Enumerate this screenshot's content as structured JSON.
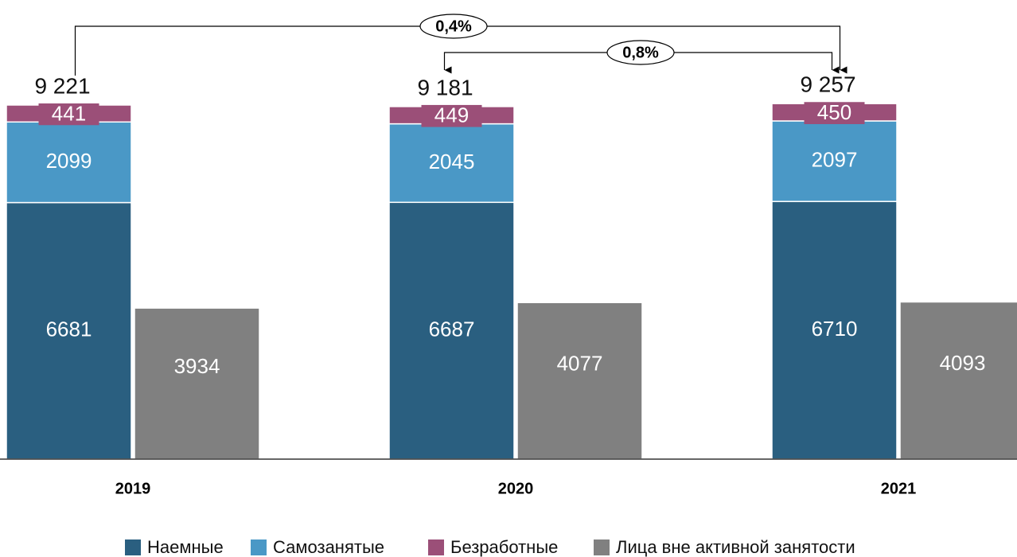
{
  "chart_data": {
    "type": "bar",
    "categories": [
      "2019",
      "2020",
      "2021"
    ],
    "series": [
      {
        "name": "Наемные",
        "color": "#2a5f80",
        "stack": "a",
        "values": [
          6681,
          6687,
          6710
        ]
      },
      {
        "name": "Самозанятые",
        "color": "#4a98c6",
        "stack": "a",
        "values": [
          2099,
          2045,
          2097
        ]
      },
      {
        "name": "Безработные",
        "color": "#9b4f78",
        "stack": "a",
        "values": [
          441,
          449,
          450
        ]
      },
      {
        "name": "Лица вне активной занятости",
        "color": "#808080",
        "stack": "b",
        "values": [
          3934,
          4077,
          4093
        ]
      }
    ],
    "totals": {
      "values": [
        9221,
        9181,
        9257
      ],
      "value_labels": [
        "9 221",
        "9 181",
        "9 257"
      ]
    },
    "annotations": [
      "0,4%",
      "0,8%"
    ],
    "ylim": [
      0,
      10000
    ],
    "legend": "bottom"
  }
}
